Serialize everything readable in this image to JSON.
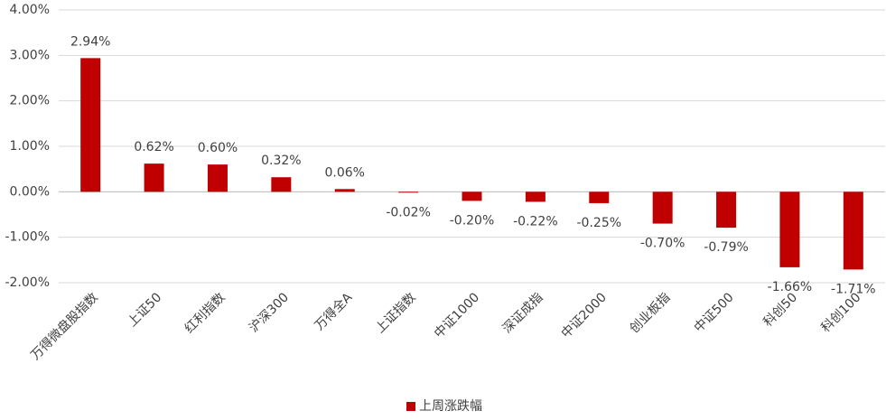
{
  "chart_data": {
    "type": "bar",
    "categories": [
      "万得微盘股指数",
      "上证50",
      "红利指数",
      "沪深300",
      "万得全A",
      "上证指数",
      "中证1000",
      "深证成指",
      "中证2000",
      "创业板指",
      "中证500",
      "科创50",
      "科创100"
    ],
    "series": [
      {
        "name": "上周涨跌幅",
        "color": "#c00000",
        "values": [
          2.94,
          0.62,
          0.6,
          0.32,
          0.06,
          -0.02,
          -0.2,
          -0.22,
          -0.25,
          -0.7,
          -0.79,
          -1.66,
          -1.71
        ],
        "value_labels": [
          "2.94%",
          "0.62%",
          "0.60%",
          "0.32%",
          "0.06%",
          "-0.02%",
          "-0.20%",
          "-0.22%",
          "-0.25%",
          "-0.70%",
          "-0.79%",
          "-1.66%",
          "-1.71%"
        ]
      }
    ],
    "ylim": [
      -2,
      4
    ],
    "yticks": [
      {
        "value": -2,
        "label": "-2.00%"
      },
      {
        "value": -1,
        "label": "-1.00%"
      },
      {
        "value": 0,
        "label": "0.00%"
      },
      {
        "value": 1,
        "label": "1.00%"
      },
      {
        "value": 2,
        "label": "2.00%"
      },
      {
        "value": 3,
        "label": "3.00%"
      },
      {
        "value": 4,
        "label": "4.00%"
      }
    ],
    "grid": true,
    "legend": "bottom"
  }
}
